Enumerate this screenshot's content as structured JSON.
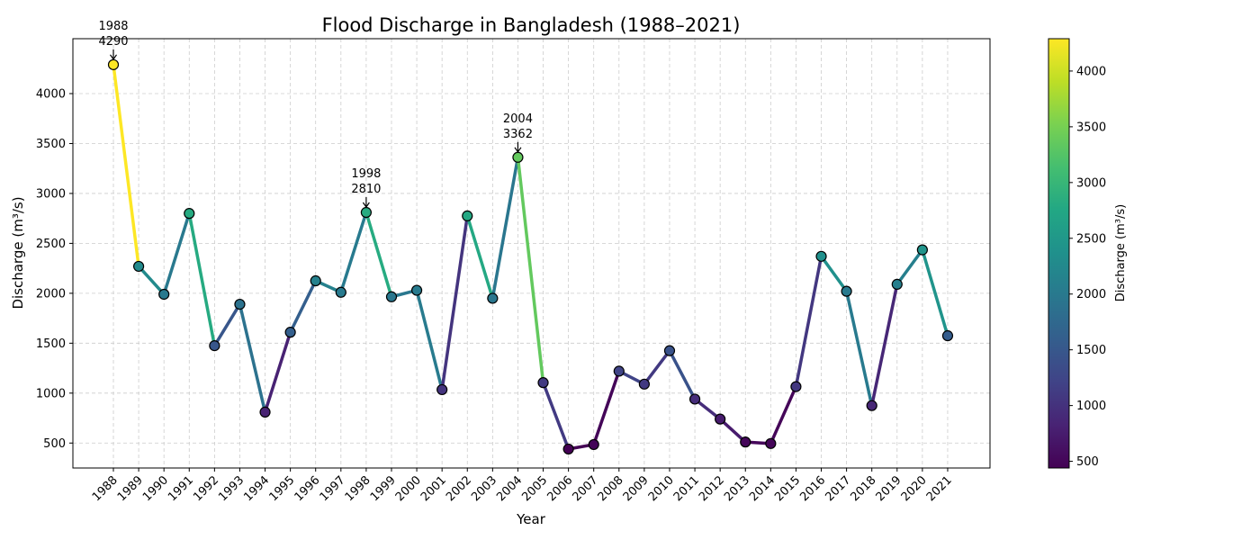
{
  "chart_data": {
    "type": "line",
    "title": "Flood Discharge in Bangladesh (1988–2021)",
    "xlabel": "Year",
    "ylabel": "Discharge (m³/s)",
    "colorbar_label": "Discharge (m³/s)",
    "x": [
      1988,
      1989,
      1990,
      1991,
      1992,
      1993,
      1994,
      1995,
      1996,
      1997,
      1998,
      1999,
      2000,
      2001,
      2002,
      2003,
      2004,
      2005,
      2006,
      2007,
      2008,
      2009,
      2010,
      2011,
      2012,
      2013,
      2014,
      2015,
      2016,
      2017,
      2018,
      2019,
      2020,
      2021
    ],
    "values": [
      4290,
      2270,
      1990,
      2800,
      1475,
      1890,
      810,
      1610,
      2125,
      2010,
      2810,
      1965,
      2030,
      1035,
      2775,
      1950,
      3362,
      1105,
      440,
      485,
      1220,
      1090,
      1425,
      940,
      740,
      510,
      495,
      1065,
      2370,
      2020,
      875,
      2090,
      2435,
      1575
    ],
    "ylim": [
      250,
      4550
    ],
    "yticks": [
      500,
      1000,
      1500,
      2000,
      2500,
      3000,
      3500,
      4000
    ],
    "colorbar_range": [
      440,
      4290
    ],
    "colorbar_ticks": [
      500,
      1000,
      1500,
      2000,
      2500,
      3000,
      3500,
      4000
    ],
    "colormap": "viridis",
    "grid": true,
    "annotations": [
      {
        "year": "1988",
        "value": "4290"
      },
      {
        "year": "1998",
        "value": "2810"
      },
      {
        "year": "2004",
        "value": "3362"
      }
    ]
  }
}
